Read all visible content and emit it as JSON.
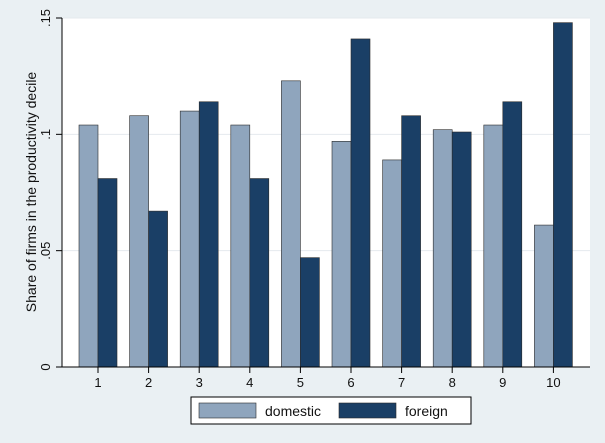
{
  "chart_data": {
    "type": "bar",
    "title": "",
    "xlabel": "",
    "ylabel": "Share of firms in the productivity decile",
    "categories": [
      "1",
      "2",
      "3",
      "4",
      "5",
      "6",
      "7",
      "8",
      "9",
      "10"
    ],
    "series": [
      {
        "name": "domestic",
        "color": "#8fa5bd",
        "values": [
          0.104,
          0.108,
          0.11,
          0.104,
          0.123,
          0.097,
          0.089,
          0.102,
          0.104,
          0.061
        ]
      },
      {
        "name": "foreign",
        "color": "#1a3f66",
        "values": [
          0.081,
          0.067,
          0.114,
          0.081,
          0.047,
          0.141,
          0.108,
          0.101,
          0.114,
          0.148
        ]
      }
    ],
    "ylim": [
      0,
      0.15
    ],
    "yticks": [
      {
        "value": 0,
        "label": "0"
      },
      {
        "value": 0.05,
        "label": ".05"
      },
      {
        "value": 0.1,
        "label": ".1"
      },
      {
        "value": 0.15,
        "label": ".15"
      }
    ],
    "grid": true,
    "legend_position": "bottom"
  }
}
